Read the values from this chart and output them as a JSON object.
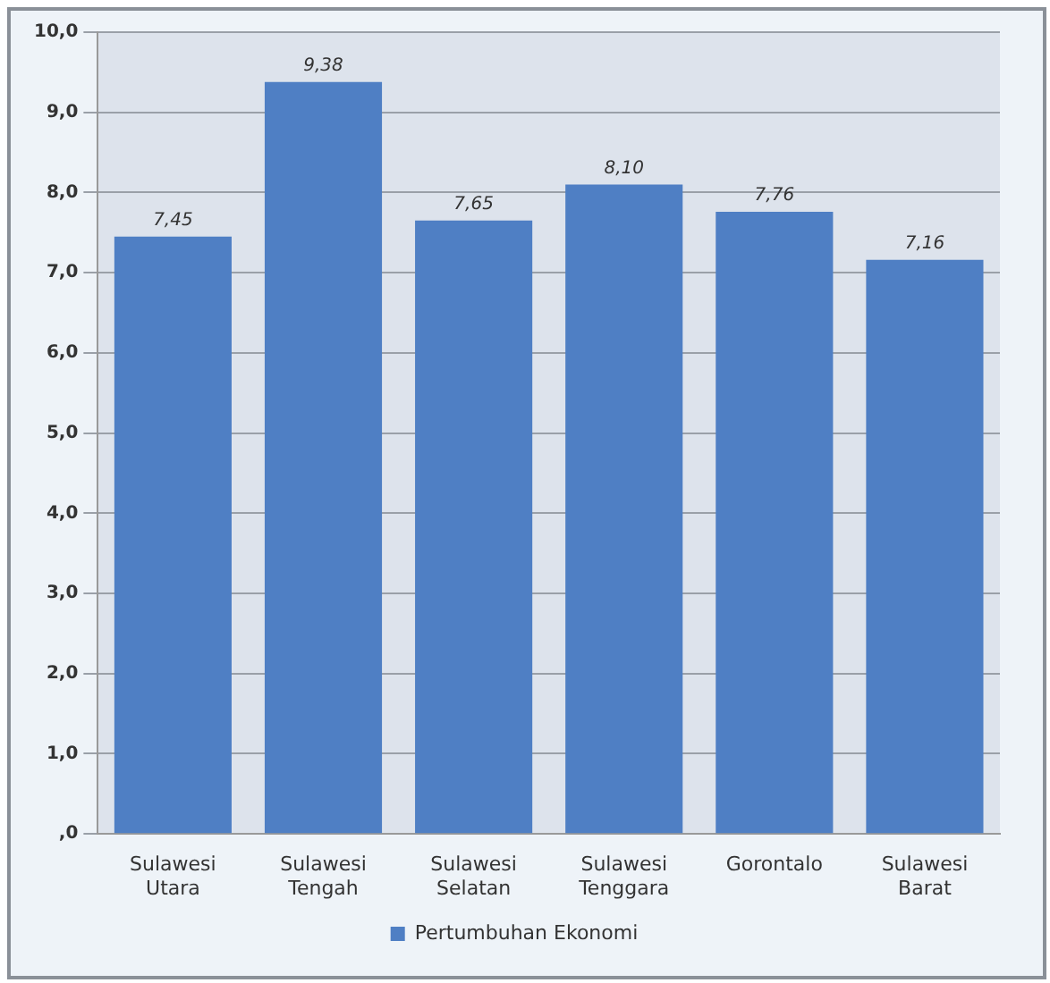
{
  "chart_data": {
    "type": "bar",
    "categories": [
      "Sulawesi Utara",
      "Sulawesi Tengah",
      "Sulawesi Selatan",
      "Sulawesi Tenggara",
      "Gorontalo",
      "Sulawesi Barat"
    ],
    "series": [
      {
        "name": "Pertumbuhan Ekonomi",
        "color": "#4f7fc4",
        "values": [
          7.45,
          9.38,
          7.65,
          8.1,
          7.76,
          7.16
        ],
        "value_labels": [
          "7,45",
          "9,38",
          "7,65",
          "8,10",
          "7,76",
          "7,16"
        ]
      }
    ],
    "ylim": [
      0,
      10
    ],
    "yticks": [
      {
        "value": 0,
        "label": ",0"
      },
      {
        "value": 1,
        "label": "1,0"
      },
      {
        "value": 2,
        "label": "2,0"
      },
      {
        "value": 3,
        "label": "3,0"
      },
      {
        "value": 4,
        "label": "4,0"
      },
      {
        "value": 5,
        "label": "5,0"
      },
      {
        "value": 6,
        "label": "6,0"
      },
      {
        "value": 7,
        "label": "7,0"
      },
      {
        "value": 8,
        "label": "8,0"
      },
      {
        "value": 9,
        "label": "9,0"
      },
      {
        "value": 10,
        "label": "10,0"
      }
    ],
    "grid": "y",
    "legend": "bottom"
  }
}
